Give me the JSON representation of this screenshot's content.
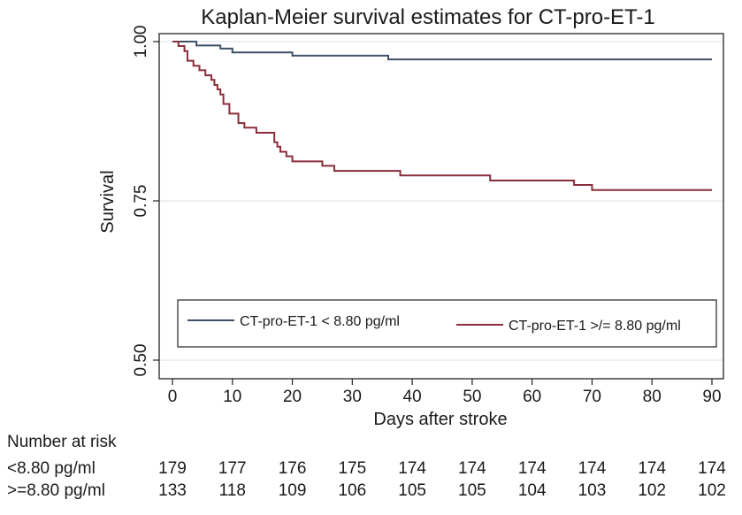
{
  "chart_data": {
    "type": "line",
    "title": "Kaplan-Meier survival estimates for CT-pro-ET-1",
    "xlabel": "Days after stroke",
    "ylabel": "Survival",
    "xlim": [
      0,
      90
    ],
    "ylim": [
      0.5,
      1.0
    ],
    "x_ticks": [
      0,
      10,
      20,
      30,
      40,
      50,
      60,
      70,
      80,
      90
    ],
    "x_tick_labels": [
      "0",
      "10",
      "20",
      "30",
      "40",
      "50",
      "60",
      "70",
      "80",
      "90"
    ],
    "y_ticks": [
      0.5,
      0.75,
      1.0
    ],
    "y_tick_labels": [
      "0.50",
      "0.75",
      "1.00"
    ],
    "grid": "horizontal",
    "legend_position": "bottom-inside",
    "series": [
      {
        "name": "CT-pro-ET-1 < 8.80 pg/ml",
        "color": "#3d5068",
        "steps": [
          [
            0,
            1.0
          ],
          [
            4,
            0.994
          ],
          [
            8,
            0.989
          ],
          [
            10,
            0.983
          ],
          [
            20,
            0.978
          ],
          [
            36,
            0.972
          ],
          [
            90,
            0.972
          ]
        ]
      },
      {
        "name": "CT-pro-ET-1 >/= 8.80 pg/ml",
        "color": "#8b2d3a",
        "steps": [
          [
            0,
            1.0
          ],
          [
            1,
            0.993
          ],
          [
            2,
            0.985
          ],
          [
            2.5,
            0.97
          ],
          [
            3.5,
            0.962
          ],
          [
            4.5,
            0.955
          ],
          [
            5.5,
            0.947
          ],
          [
            6.5,
            0.94
          ],
          [
            7,
            0.932
          ],
          [
            7.5,
            0.925
          ],
          [
            8,
            0.917
          ],
          [
            8.5,
            0.902
          ],
          [
            9.5,
            0.887
          ],
          [
            11,
            0.872
          ],
          [
            12,
            0.865
          ],
          [
            14,
            0.857
          ],
          [
            17,
            0.842
          ],
          [
            17.5,
            0.835
          ],
          [
            18,
            0.827
          ],
          [
            19,
            0.82
          ],
          [
            20,
            0.812
          ],
          [
            25,
            0.805
          ],
          [
            27,
            0.797
          ],
          [
            38,
            0.79
          ],
          [
            53,
            0.782
          ],
          [
            67,
            0.775
          ],
          [
            70,
            0.767
          ],
          [
            90,
            0.767
          ]
        ]
      }
    ],
    "risk_table": {
      "heading": "Number at risk",
      "rows": [
        {
          "label": "<8.80 pg/ml",
          "values": [
            "179",
            "177",
            "176",
            "175",
            "174",
            "174",
            "174",
            "174",
            "174",
            "174"
          ]
        },
        {
          "label": ">=8.80 pg/ml",
          "values": [
            "133",
            "118",
            "109",
            "106",
            "105",
            "105",
            "104",
            "103",
            "102",
            "102"
          ]
        }
      ]
    }
  }
}
